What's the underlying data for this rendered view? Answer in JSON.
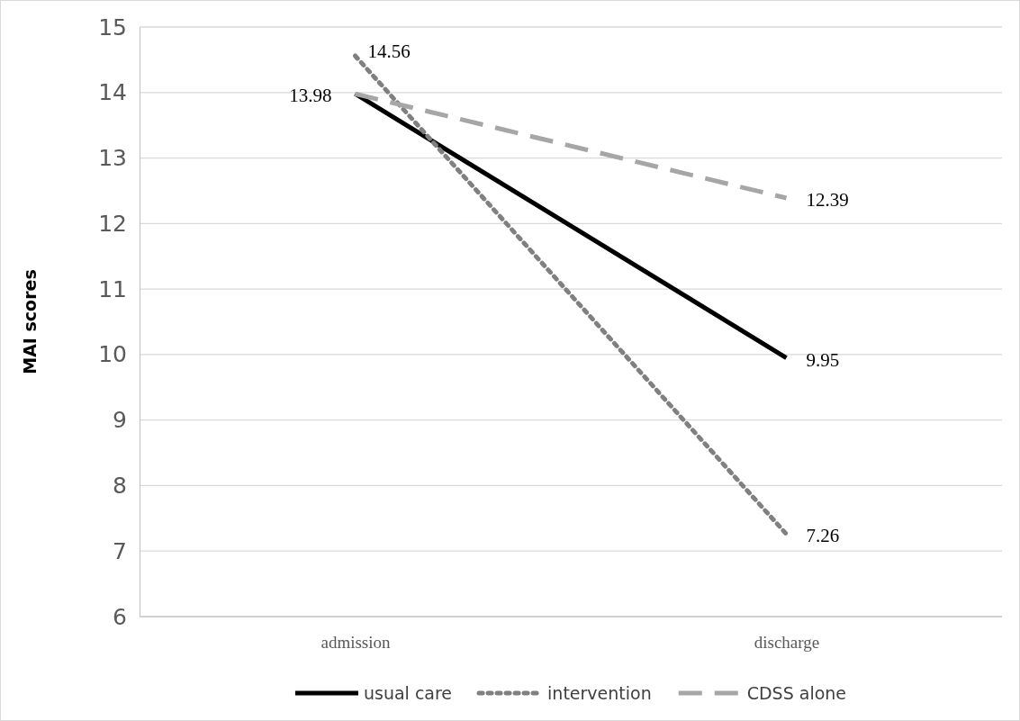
{
  "chart_data": {
    "type": "line",
    "ylabel": "MAI scores",
    "categories": [
      "admission",
      "discharge"
    ],
    "series": [
      {
        "name": "usual care",
        "color": "#000000",
        "line_style": "solid",
        "values": [
          13.98,
          9.95
        ],
        "value_labels": [
          "13.98",
          "9.95"
        ]
      },
      {
        "name": "intervention",
        "color": "#808080",
        "line_style": "dotted",
        "values": [
          14.56,
          7.26
        ],
        "value_labels": [
          "14.56",
          "7.26"
        ]
      },
      {
        "name": "CDSS alone",
        "color": "#a6a6a6",
        "line_style": "dashed",
        "values": [
          13.98,
          12.39
        ],
        "value_labels": [
          null,
          "12.39"
        ]
      }
    ],
    "ylim": [
      6,
      15
    ],
    "yticks": [
      6,
      7,
      8,
      9,
      10,
      11,
      12,
      13,
      14,
      15
    ],
    "grid": "y",
    "legend": "bottom",
    "marker": "none"
  }
}
